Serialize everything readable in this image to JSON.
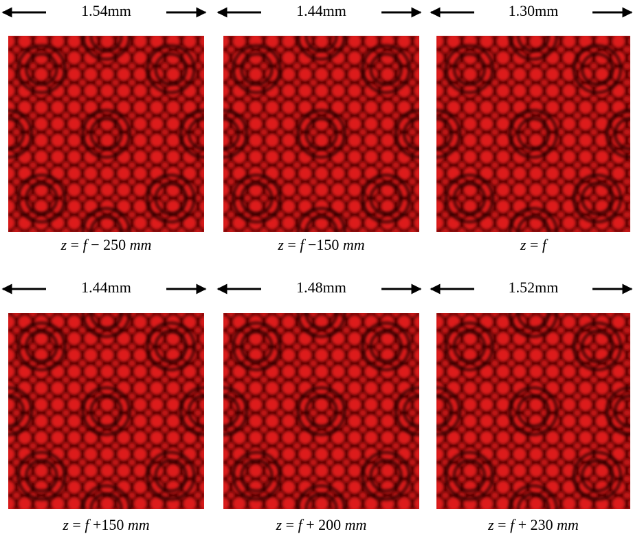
{
  "panels": [
    {
      "width": "1.54mm",
      "caption": [
        "z",
        " = ",
        "f",
        " − 250 ",
        "mm"
      ]
    },
    {
      "width": "1.44mm",
      "caption": [
        "z",
        " = ",
        "f",
        " −150 ",
        "mm"
      ]
    },
    {
      "width": "1.30mm",
      "caption": [
        "z",
        " = ",
        "f"
      ]
    },
    {
      "width": "1.44mm",
      "caption": [
        "z",
        " = ",
        "f",
        " +150 ",
        "mm"
      ]
    },
    {
      "width": "1.48mm",
      "caption": [
        "z",
        " = ",
        "f",
        " + 200 ",
        "mm"
      ]
    },
    {
      "width": "1.52mm",
      "caption": [
        "z",
        " = ",
        "f",
        " + 230 ",
        "mm"
      ]
    }
  ]
}
